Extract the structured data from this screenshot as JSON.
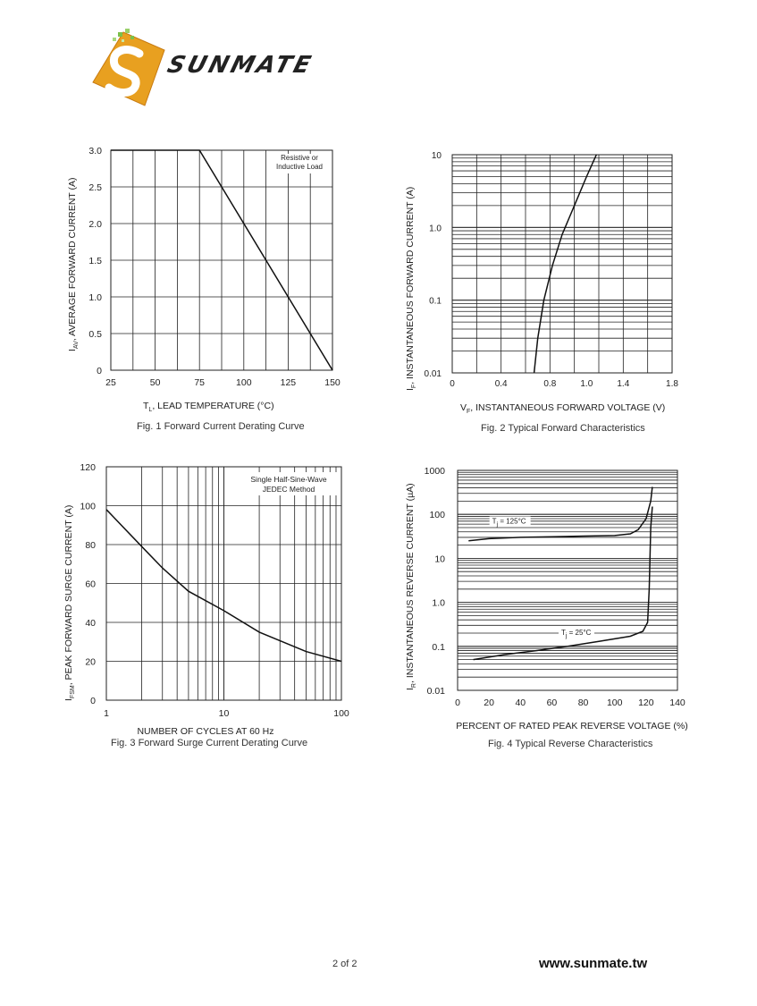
{
  "brand": {
    "name": "SUNMATE",
    "logo_icon": "s-logo-icon",
    "logo_colors": {
      "orange": "#e8a020",
      "green": "#7cc04a"
    }
  },
  "footer": {
    "page": "2 of 2",
    "url": "www.sunmate.tw"
  },
  "chart_data": [
    {
      "type": "line",
      "id": "fig1",
      "caption": "Fig. 1  Forward Current Derating Curve",
      "xlabel": "T",
      "xlabel_sub": "L",
      "xlabel_rest": ", LEAD TEMPERATURE (°C)",
      "ylabel": "I",
      "ylabel_sub": "AV",
      "ylabel_rest": ", AVERAGE FORWARD CURRENT (A)",
      "xlim": [
        25,
        150
      ],
      "ylim": [
        0,
        3.0
      ],
      "xticks": [
        "25",
        "50",
        "75",
        "100",
        "125",
        "150"
      ],
      "yticks": [
        "0",
        "0.5",
        "1.0",
        "1.5",
        "2.0",
        "2.5",
        "3.0"
      ],
      "annotation": [
        "Resistive or",
        "Inductive Load"
      ],
      "grid": true,
      "series": [
        {
          "x": [
            25,
            75,
            150
          ],
          "y": [
            3.0,
            3.0,
            0
          ]
        }
      ]
    },
    {
      "type": "line",
      "id": "fig2",
      "caption": "Fig. 2  Typical Forward Characteristics",
      "xlabel": "V",
      "xlabel_sub": "F",
      "xlabel_rest": ", INSTANTANEOUS FORWARD VOLTAGE (V)",
      "ylabel": "I",
      "ylabel_sub": "F",
      "ylabel_rest": ", INSTANTANEOUS FORWARD CURRENT (A)",
      "xlim": [
        0,
        1.8
      ],
      "ylim": [
        0.01,
        10
      ],
      "yscale": "log",
      "xticks": [
        "0",
        "0.4",
        "0.8",
        "1.0",
        "1.4",
        "1.8"
      ],
      "yticks": [
        "0.01",
        "0.1",
        "1.0",
        "10"
      ],
      "grid": true,
      "series": [
        {
          "x": [
            0.67,
            0.7,
            0.75,
            0.82,
            0.9,
            1.0,
            1.1,
            1.18
          ],
          "y": [
            0.01,
            0.03,
            0.1,
            0.3,
            0.8,
            2.0,
            5.0,
            10
          ]
        }
      ]
    },
    {
      "type": "line",
      "id": "fig3",
      "caption": "Fig. 3  Forward Surge Current Derating Curve",
      "xlabel": "NUMBER OF CYCLES AT 60 Hz",
      "ylabel": "I",
      "ylabel_sub": "FSM",
      "ylabel_rest": ", PEAK FORWARD SURGE CURRENT (A)",
      "xlim": [
        1,
        100
      ],
      "xscale": "log",
      "ylim": [
        0,
        120
      ],
      "xticks": [
        "1",
        "10",
        "100"
      ],
      "yticks": [
        "0",
        "20",
        "40",
        "60",
        "80",
        "100",
        "120"
      ],
      "annotation": [
        "Single Half-Sine-Wave",
        "JEDEC Method"
      ],
      "grid": true,
      "series": [
        {
          "x": [
            1,
            2,
            3,
            5,
            10,
            20,
            50,
            100
          ],
          "y": [
            98,
            79,
            68,
            56,
            46,
            35,
            25,
            20
          ]
        }
      ]
    },
    {
      "type": "line",
      "id": "fig4",
      "caption": "Fig. 4  Typical Reverse Characteristics",
      "xlabel": "PERCENT OF RATED PEAK REVERSE VOLTAGE (%)",
      "ylabel": "I",
      "ylabel_sub": "R",
      "ylabel_rest": ", INSTANTANEOUS REVERSE CURRENT (µA)",
      "xlim": [
        0,
        140
      ],
      "ylim": [
        0.01,
        1000
      ],
      "yscale": "log",
      "xticks": [
        "0",
        "20",
        "40",
        "60",
        "80",
        "100",
        "120",
        "140"
      ],
      "yticks": [
        "0.01",
        "0.1",
        "1.0",
        "10",
        "100",
        "1000"
      ],
      "grid": true,
      "series": [
        {
          "name": "T",
          "name_sub": "j",
          "name_rest": " =  125°C",
          "x": [
            7,
            20,
            40,
            60,
            80,
            100,
            110,
            115,
            120,
            123,
            124
          ],
          "y": [
            25,
            28,
            30,
            31,
            32,
            33,
            36,
            45,
            80,
            200,
            420
          ]
        },
        {
          "name": "T",
          "name_sub": "j",
          "name_rest": " =  25°C",
          "x": [
            10,
            30,
            50,
            70,
            90,
            110,
            118,
            121,
            122,
            123,
            124
          ],
          "y": [
            0.05,
            0.065,
            0.08,
            0.1,
            0.13,
            0.17,
            0.22,
            0.35,
            2,
            50,
            150
          ]
        }
      ]
    }
  ]
}
